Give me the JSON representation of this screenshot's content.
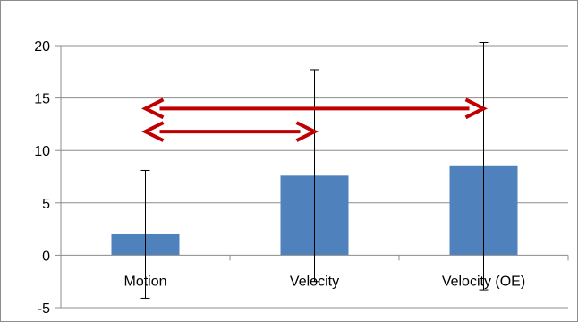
{
  "chart_data": {
    "type": "bar",
    "title": "",
    "xlabel": "",
    "ylabel": "",
    "categories": [
      "Motion",
      "Velocity",
      "Velocity (OE)"
    ],
    "series": [
      {
        "values": [
          2.0,
          7.6,
          8.5
        ],
        "error": [
          6.1,
          10.1,
          11.8
        ],
        "color": "#4f81bd"
      }
    ],
    "ylim": [
      -5,
      20
    ],
    "yticks": [
      -5,
      0,
      5,
      10,
      15,
      20
    ],
    "grid": true,
    "gridline_color": "#8c8c8c",
    "annotations": [
      {
        "type": "double-arrow",
        "from": "Motion",
        "to": "Velocity",
        "y": 11.8,
        "color": "#c00000"
      },
      {
        "type": "double-arrow",
        "from": "Motion",
        "to": "Velocity (OE)",
        "y": 14.0,
        "color": "#c00000"
      }
    ]
  }
}
